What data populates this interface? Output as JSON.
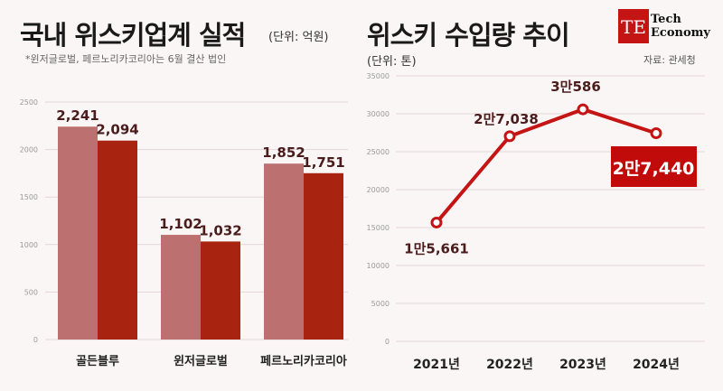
{
  "left": {
    "title": "국내 위스키업계 실적",
    "unit": "(단위: 억원)",
    "note": "*윈저글로벌, 페르노리카코리아는 6월 결산 법인"
  },
  "right": {
    "title": "위스키 수입량 추이",
    "unit": "(단위: 톤)",
    "source": "자료: 관세청"
  },
  "logo": {
    "mark": "TE",
    "line1": "Tech",
    "line2": "Economy"
  },
  "colors": {
    "bar_prev": "#bd7070",
    "bar_curr": "#a92410",
    "line": "#c41414",
    "highlight_box": "#c10a0a"
  },
  "chart_data": [
    {
      "type": "bar",
      "categories": [
        "골든블루",
        "윈저글로벌",
        "페르노리카코리아"
      ],
      "series": [
        {
          "values": [
            2241,
            1102,
            1852
          ],
          "labels": [
            "2,241",
            "1,102",
            "1,852"
          ]
        },
        {
          "values": [
            2094,
            1032,
            1751
          ],
          "labels": [
            "2,094",
            "1,032",
            "1,751"
          ]
        }
      ],
      "ylim": [
        0,
        2500
      ],
      "yticks": [
        "0",
        "500",
        "1000",
        "1500",
        "2000",
        "2500"
      ],
      "grid": true
    },
    {
      "type": "line",
      "categories": [
        "2021년",
        "2022년",
        "2023년",
        "2024년"
      ],
      "values": [
        15661,
        27038,
        30586,
        27440
      ],
      "labels": [
        "1만5,661",
        "2만7,038",
        "3만586",
        "2만7,440"
      ],
      "ylim": [
        0,
        35000
      ],
      "yticks": [
        "0",
        "5000",
        "10000",
        "15000",
        "20000",
        "25000",
        "30000",
        "35000"
      ],
      "grid": true
    }
  ]
}
